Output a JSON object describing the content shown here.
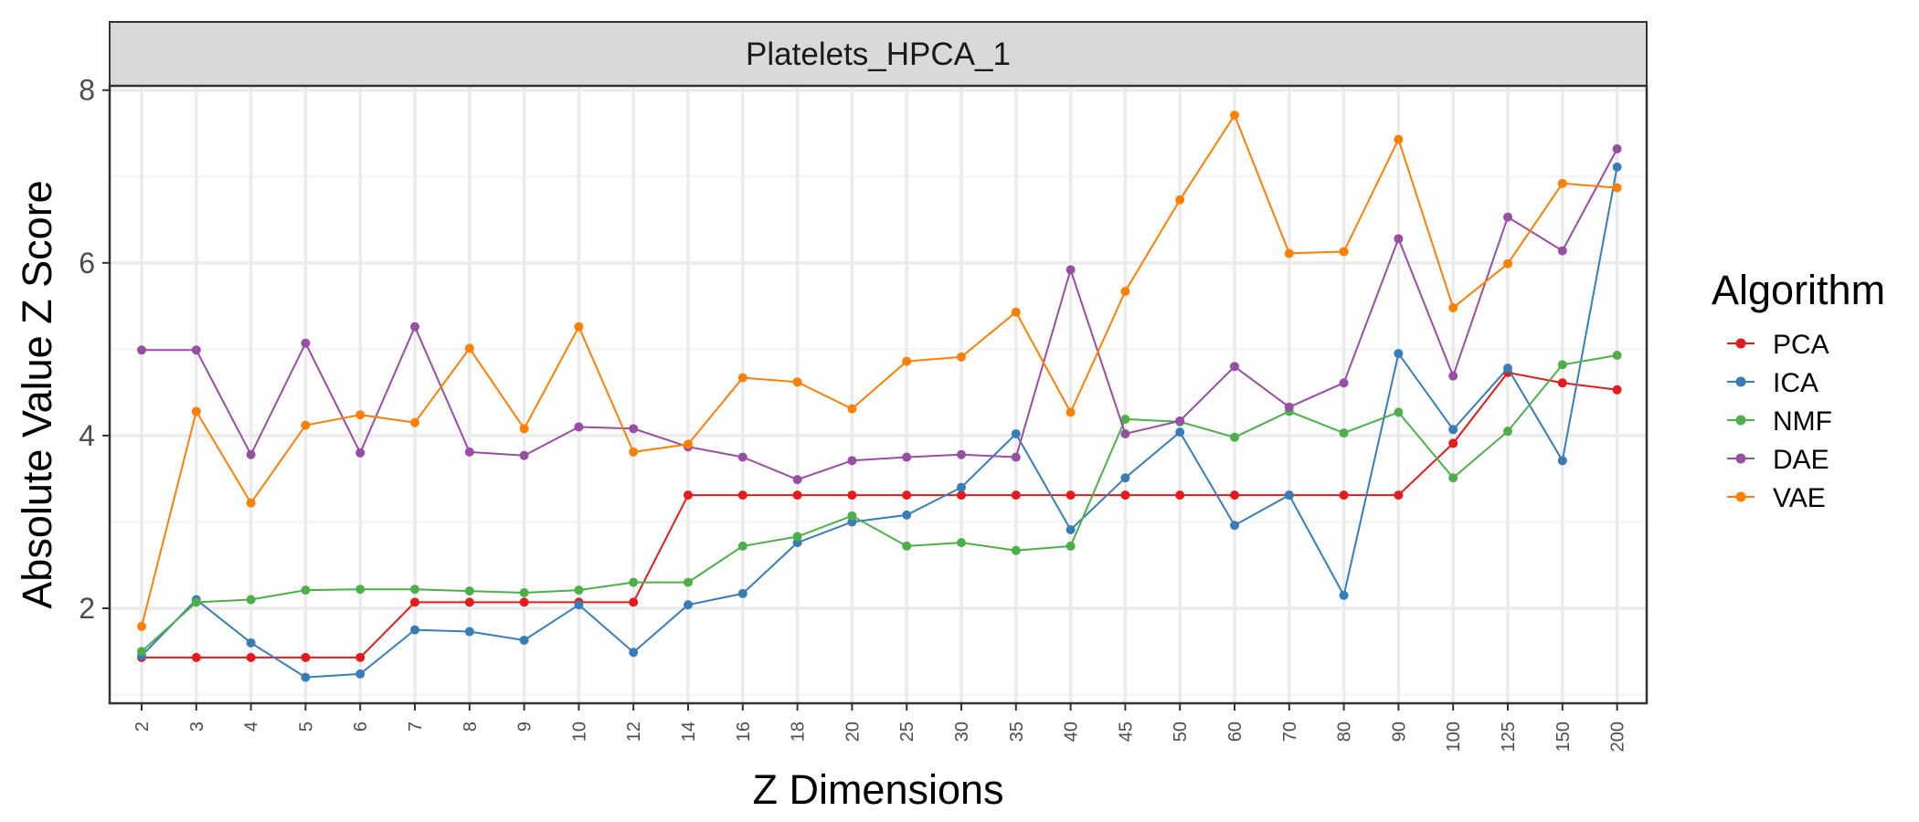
{
  "chart_data": {
    "type": "line",
    "facet_title": "Platelets_HPCA_1",
    "xlabel": "Z Dimensions",
    "ylabel": "Absolute Value Z Score",
    "categories": [
      "2",
      "3",
      "4",
      "5",
      "6",
      "7",
      "8",
      "9",
      "10",
      "12",
      "14",
      "16",
      "18",
      "20",
      "25",
      "30",
      "35",
      "40",
      "45",
      "50",
      "60",
      "70",
      "80",
      "90",
      "100",
      "125",
      "150",
      "200"
    ],
    "y_ticks": [
      2,
      4,
      6,
      8
    ],
    "ylim": [
      0.9,
      8.05
    ],
    "grid": true,
    "legend": {
      "title": "Algorithm",
      "position": "right"
    },
    "series": [
      {
        "name": "PCA",
        "color": "#E41A1C",
        "values": [
          1.43,
          1.43,
          1.43,
          1.43,
          1.43,
          2.07,
          2.07,
          2.07,
          2.07,
          2.07,
          3.31,
          3.31,
          3.31,
          3.31,
          3.31,
          3.31,
          3.31,
          3.31,
          3.31,
          3.31,
          3.31,
          3.31,
          3.31,
          3.31,
          3.91,
          4.73,
          4.61,
          4.53
        ]
      },
      {
        "name": "ICA",
        "color": "#377EB8",
        "values": [
          1.45,
          2.1,
          1.6,
          1.2,
          1.24,
          1.75,
          1.73,
          1.63,
          2.04,
          1.49,
          2.04,
          2.17,
          2.76,
          3.0,
          3.08,
          3.4,
          4.02,
          2.91,
          3.51,
          4.04,
          2.96,
          3.31,
          2.15,
          4.95,
          4.07,
          4.78,
          3.71,
          7.11
        ]
      },
      {
        "name": "NMF",
        "color": "#4DAF4A",
        "values": [
          1.5,
          2.07,
          2.1,
          2.21,
          2.22,
          2.22,
          2.2,
          2.18,
          2.21,
          2.3,
          2.3,
          2.72,
          2.83,
          3.07,
          2.72,
          2.76,
          2.67,
          2.72,
          4.19,
          4.16,
          3.98,
          4.28,
          4.03,
          4.27,
          3.51,
          4.05,
          4.82,
          4.93
        ]
      },
      {
        "name": "DAE",
        "color": "#984EA3",
        "values": [
          4.99,
          4.99,
          3.78,
          5.07,
          3.8,
          5.26,
          3.81,
          3.77,
          4.1,
          4.08,
          3.87,
          3.75,
          3.49,
          3.71,
          3.75,
          3.78,
          3.75,
          5.92,
          4.02,
          4.17,
          4.8,
          4.33,
          4.61,
          6.28,
          4.69,
          6.53,
          6.14,
          7.32
        ]
      },
      {
        "name": "VAE",
        "color": "#FF7F00",
        "values": [
          1.79,
          4.28,
          3.22,
          4.12,
          4.24,
          4.15,
          5.01,
          4.08,
          5.26,
          3.81,
          3.9,
          4.67,
          4.62,
          4.31,
          4.86,
          4.91,
          5.43,
          4.27,
          5.67,
          6.73,
          7.71,
          6.11,
          6.13,
          7.43,
          5.48,
          5.99,
          6.92,
          6.87
        ]
      }
    ]
  }
}
